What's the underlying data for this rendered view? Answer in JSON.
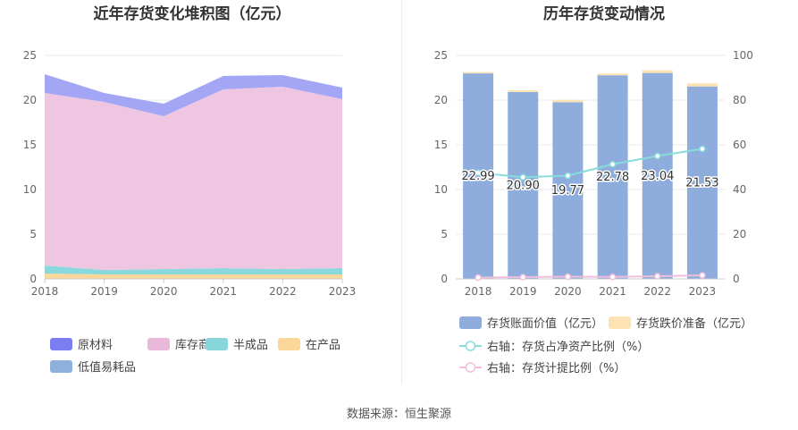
{
  "left_chart": {
    "title": "近年存货变化堆积图（亿元）",
    "chart_data": {
      "type": "area",
      "stacked": true,
      "x": [
        "2018",
        "2019",
        "2020",
        "2021",
        "2022",
        "2023"
      ],
      "ylim": [
        0,
        25
      ],
      "yticks": [
        "0",
        "5",
        "10",
        "15",
        "20",
        "25"
      ],
      "grid": true,
      "legend_position": "bottom",
      "series": [
        {
          "name": "在产品",
          "color": "#fbd79a",
          "values": [
            0.6,
            0.5,
            0.5,
            0.5,
            0.5,
            0.5
          ]
        },
        {
          "name": "半成品",
          "color": "#8ad8dc",
          "values": [
            0.9,
            0.5,
            0.6,
            0.7,
            0.6,
            0.7
          ]
        },
        {
          "name": "低值易耗品",
          "color": "#8fb0dd",
          "values": [
            0,
            0,
            0,
            0,
            0,
            0
          ]
        },
        {
          "name": "库存商品",
          "color": "#efc6e2",
          "values": [
            19.3,
            18.8,
            17.1,
            20.0,
            20.4,
            18.9
          ]
        },
        {
          "name": "原材料",
          "color": "#a3a6f5",
          "values": [
            2.1,
            1.0,
            1.4,
            1.5,
            1.3,
            1.3
          ]
        }
      ],
      "legend_order": [
        "原材料",
        "库存商品",
        "半成品",
        "在产品",
        "低值易耗品"
      ],
      "legend_colors": {
        "原材料": "#7b7ef2",
        "库存商品": "#eab8d8",
        "半成品": "#86d6da",
        "在产品": "#fcd79a",
        "低值易耗品": "#8fb0dd"
      }
    }
  },
  "right_chart": {
    "title": "历年存货变动情况",
    "chart_data": {
      "type": "bar",
      "categories": [
        "2018",
        "2019",
        "2020",
        "2021",
        "2022",
        "2023"
      ],
      "ylim_left": [
        0,
        25
      ],
      "yticks_left": [
        "0",
        "5",
        "10",
        "15",
        "20",
        "25"
      ],
      "ylim_right": [
        0,
        100
      ],
      "yticks_right": [
        "0",
        "20",
        "40",
        "60",
        "80",
        "100"
      ],
      "grid": true,
      "legend_position": "bottom",
      "series": [
        {
          "name": "存货账面价值（亿元）",
          "kind": "bar",
          "color": "#8eaddd",
          "values": [
            22.99,
            20.9,
            19.77,
            22.78,
            23.04,
            21.53
          ],
          "labels": [
            "22.99",
            "20.90",
            "19.77",
            "22.78",
            "23.04",
            "21.53"
          ]
        },
        {
          "name": "存货跌价准备（亿元）",
          "kind": "bar",
          "color": "#fde3b4",
          "values": [
            0.15,
            0.2,
            0.25,
            0.2,
            0.3,
            0.35
          ]
        },
        {
          "name": "右轴：存货占净资产比例（%）",
          "kind": "line",
          "axis": "right",
          "color": "#88dcdc",
          "values": [
            47.5,
            45.5,
            46.2,
            51.3,
            55.0,
            58.2
          ]
        },
        {
          "name": "右轴：存货计提比例（%）",
          "kind": "line",
          "axis": "right",
          "color": "#f0bedc",
          "values": [
            0.6,
            0.8,
            1.0,
            0.9,
            1.2,
            1.6
          ]
        }
      ]
    }
  },
  "footer": {
    "source_text": "数据来源：恒生聚源"
  }
}
